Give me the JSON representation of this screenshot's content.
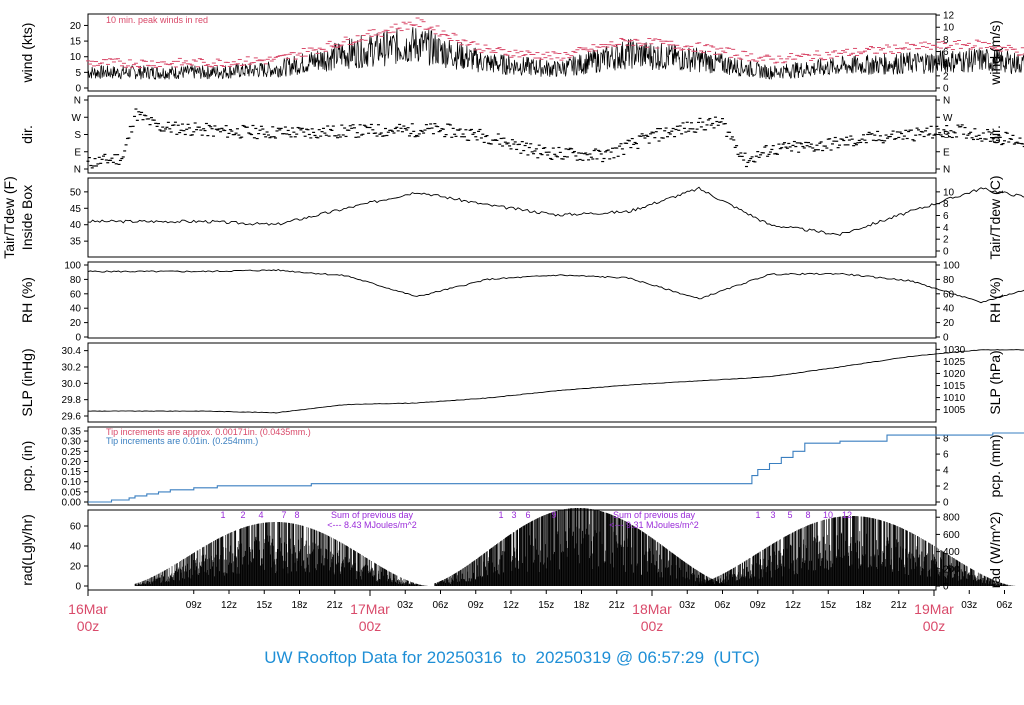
{
  "footer": {
    "prefix": "UW Rooftop Data for",
    "start": "20250316",
    "to": "to",
    "end": "20250319",
    "at": "@",
    "time": "06:57:29",
    "tz": "(UTC)"
  },
  "colors": {
    "peak": "#d94a6a",
    "blue": "#3a7fc0",
    "purple": "#9a2bd9",
    "footer": "#1f8fd6",
    "date": "#d94a6a"
  },
  "x_axis": {
    "ticks": [
      "09z",
      "12z",
      "15z",
      "18z",
      "21z",
      "03z",
      "06z",
      "09z",
      "12z",
      "15z",
      "18z",
      "21z",
      "03z",
      "06z",
      "09z",
      "12z",
      "15z",
      "18z",
      "21z",
      "03z",
      "06z"
    ],
    "dates": [
      {
        "day": "16Mar",
        "hr": "00z"
      },
      {
        "day": "17Mar",
        "hr": "00z"
      },
      {
        "day": "18Mar",
        "hr": "00z"
      },
      {
        "day": "19Mar",
        "hr": "00z"
      }
    ]
  },
  "panels": {
    "wind": {
      "label": "wind (kts)",
      "right_label": "wind (m/s)",
      "note": "10 min. peak winds in red",
      "yticks": [
        "0",
        "5",
        "10",
        "15",
        "20"
      ],
      "right_ticks": [
        "0",
        "2",
        "4",
        "6",
        "8",
        "10",
        "12"
      ]
    },
    "dir": {
      "label": "dir.",
      "right_label": "dir.",
      "yticks": [
        "N",
        "E",
        "S",
        "W",
        "N"
      ]
    },
    "temp": {
      "label1": "Tair/Tdew (F)",
      "label2": "Inside Box",
      "right_label": "Tair/Tdew (C)",
      "yticks": [
        "35",
        "40",
        "45",
        "50"
      ],
      "right_ticks": [
        "0",
        "2",
        "4",
        "6",
        "8",
        "10"
      ]
    },
    "rh": {
      "label": "RH (%)",
      "right_label": "RH (%)",
      "yticks": [
        "0",
        "20",
        "40",
        "60",
        "80",
        "100"
      ],
      "right_ticks": [
        "0",
        "20",
        "40",
        "60",
        "80",
        "100"
      ]
    },
    "slp": {
      "label": "SLP (inHg)",
      "right_label": "SLP (hPa)",
      "yticks": [
        "29.6",
        "29.8",
        "30.0",
        "30.2",
        "30.4"
      ],
      "right_ticks": [
        "1005",
        "1010",
        "1015",
        "1020",
        "1025",
        "1030"
      ]
    },
    "pcp": {
      "label": "pcp. (in)",
      "right_label": "pcp. (mm)",
      "yticks": [
        "0.00",
        "0.05",
        "0.10",
        "0.15",
        "0.20",
        "0.25",
        "0.30",
        "0.35"
      ],
      "right_ticks": [
        "0",
        "2",
        "4",
        "6",
        "8"
      ],
      "note1": "Tip increments are approx. 0.00171in. (0.0435mm.)",
      "note2": "Tip increments are 0.01in. (0.254mm.)"
    },
    "rad": {
      "label": "rad(Lgly/hr)",
      "right_label": "rad (W/m^2)",
      "yticks": [
        "0",
        "20",
        "40",
        "60"
      ],
      "right_ticks": [
        "0",
        "200",
        "400",
        "600",
        "800"
      ],
      "summaries": [
        {
          "line1": "Sum of previous day",
          "line2": "<--- 8.43 MJoules/m^2"
        },
        {
          "line1": "Sum of previous day",
          "line2": "<--- 9.31 MJoules/m^2"
        }
      ],
      "hour_marks": [
        [
          "1",
          "2",
          "4",
          "7",
          "8"
        ],
        [
          "1",
          "3",
          "6",
          "9"
        ],
        [
          "1",
          "3",
          "5",
          "8",
          "10",
          "12"
        ]
      ]
    }
  },
  "chart_data": [
    {
      "type": "line",
      "name": "wind",
      "ylabel": "wind (kts)",
      "ylim": [
        0,
        24
      ],
      "x": [
        "16Mar 06z",
        "16Mar 12z",
        "16Mar 18z",
        "17Mar 00z",
        "17Mar 06z",
        "17Mar 12z",
        "17Mar 18z",
        "18Mar 00z",
        "18Mar 06z",
        "18Mar 12z",
        "18Mar 18z",
        "19Mar 00z",
        "19Mar 06z"
      ],
      "series": [
        {
          "values": [
            5,
            6,
            11,
            14,
            8,
            6,
            11,
            9,
            5,
            7,
            8,
            9,
            7
          ]
        },
        {
          "values": [
            8,
            9,
            15,
            21,
            12,
            10,
            15,
            13,
            9,
            11,
            13,
            14,
            10
          ]
        }
      ]
    },
    {
      "type": "scatter",
      "name": "dir",
      "ylabel": "dir.",
      "categories": [
        "N",
        "E",
        "S",
        "W",
        "N"
      ]
    },
    {
      "type": "line",
      "name": "temp",
      "ylabel": "Tair/Tdew (F)",
      "ylim": [
        31,
        53
      ],
      "x": [
        "16Mar 06z",
        "16Mar 12z",
        "16Mar 18z",
        "17Mar 00z",
        "17Mar 06z",
        "17Mar 12z",
        "17Mar 18z",
        "18Mar 00z",
        "18Mar 06z",
        "18Mar 12z",
        "18Mar 18z",
        "19Mar 00z",
        "19Mar 06z"
      ],
      "series": [
        {
          "values": [
            41,
            40,
            45,
            50,
            46,
            43,
            44,
            51,
            40,
            37,
            44,
            51,
            47
          ]
        }
      ]
    },
    {
      "type": "line",
      "name": "rh",
      "ylabel": "RH (%)",
      "ylim": [
        0,
        100
      ],
      "x": [
        "16Mar 06z",
        "16Mar 12z",
        "16Mar 18z",
        "17Mar 00z",
        "17Mar 06z",
        "17Mar 12z",
        "17Mar 18z",
        "18Mar 00z",
        "18Mar 06z",
        "18Mar 12z",
        "18Mar 18z",
        "19Mar 00z",
        "19Mar 06z"
      ],
      "series": [
        {
          "values": [
            91,
            93,
            85,
            56,
            80,
            86,
            82,
            53,
            87,
            88,
            78,
            48,
            76
          ]
        }
      ]
    },
    {
      "type": "line",
      "name": "slp",
      "ylabel": "SLP (inHg)",
      "ylim": [
        29.6,
        30.45
      ],
      "x": [
        "16Mar 06z",
        "16Mar 12z",
        "16Mar 18z",
        "17Mar 00z",
        "17Mar 06z",
        "17Mar 12z",
        "17Mar 18z",
        "18Mar 00z",
        "18Mar 06z",
        "18Mar 12z",
        "18Mar 18z",
        "19Mar 00z",
        "19Mar 06z"
      ],
      "series": [
        {
          "values": [
            29.66,
            29.64,
            29.74,
            29.76,
            29.82,
            29.91,
            29.98,
            30.03,
            30.08,
            30.2,
            30.33,
            30.41,
            30.41
          ]
        }
      ]
    },
    {
      "type": "line",
      "name": "pcp",
      "ylabel": "pcp. (in)",
      "ylim": [
        0,
        0.35
      ],
      "x": [
        "16Mar 06z",
        "16Mar 12z",
        "16Mar 15z",
        "16Mar 18z",
        "17Mar 00z",
        "17Mar 12z",
        "17Mar 23z",
        "18Mar 00z",
        "18Mar 06z",
        "18Mar 09z",
        "19Mar 06z"
      ],
      "series": [
        {
          "values": [
            0.0,
            0.05,
            0.08,
            0.09,
            0.09,
            0.09,
            0.1,
            0.29,
            0.33,
            0.34,
            0.34
          ]
        }
      ]
    },
    {
      "type": "area",
      "name": "rad",
      "ylabel": "rad(Lgly/hr)",
      "ylim": [
        0,
        70
      ],
      "x": [
        "16Mar 15z",
        "16Mar 18z",
        "16Mar 21z",
        "17Mar 00z",
        "17Mar 15z",
        "17Mar 18z",
        "17Mar 21z",
        "18Mar 00z",
        "18Mar 15z",
        "18Mar 18z",
        "18Mar 21z",
        "19Mar 00z"
      ],
      "series": [
        {
          "values": [
            0,
            20,
            60,
            0,
            0,
            30,
            75,
            0,
            0,
            40,
            70,
            0
          ]
        }
      ]
    }
  ]
}
